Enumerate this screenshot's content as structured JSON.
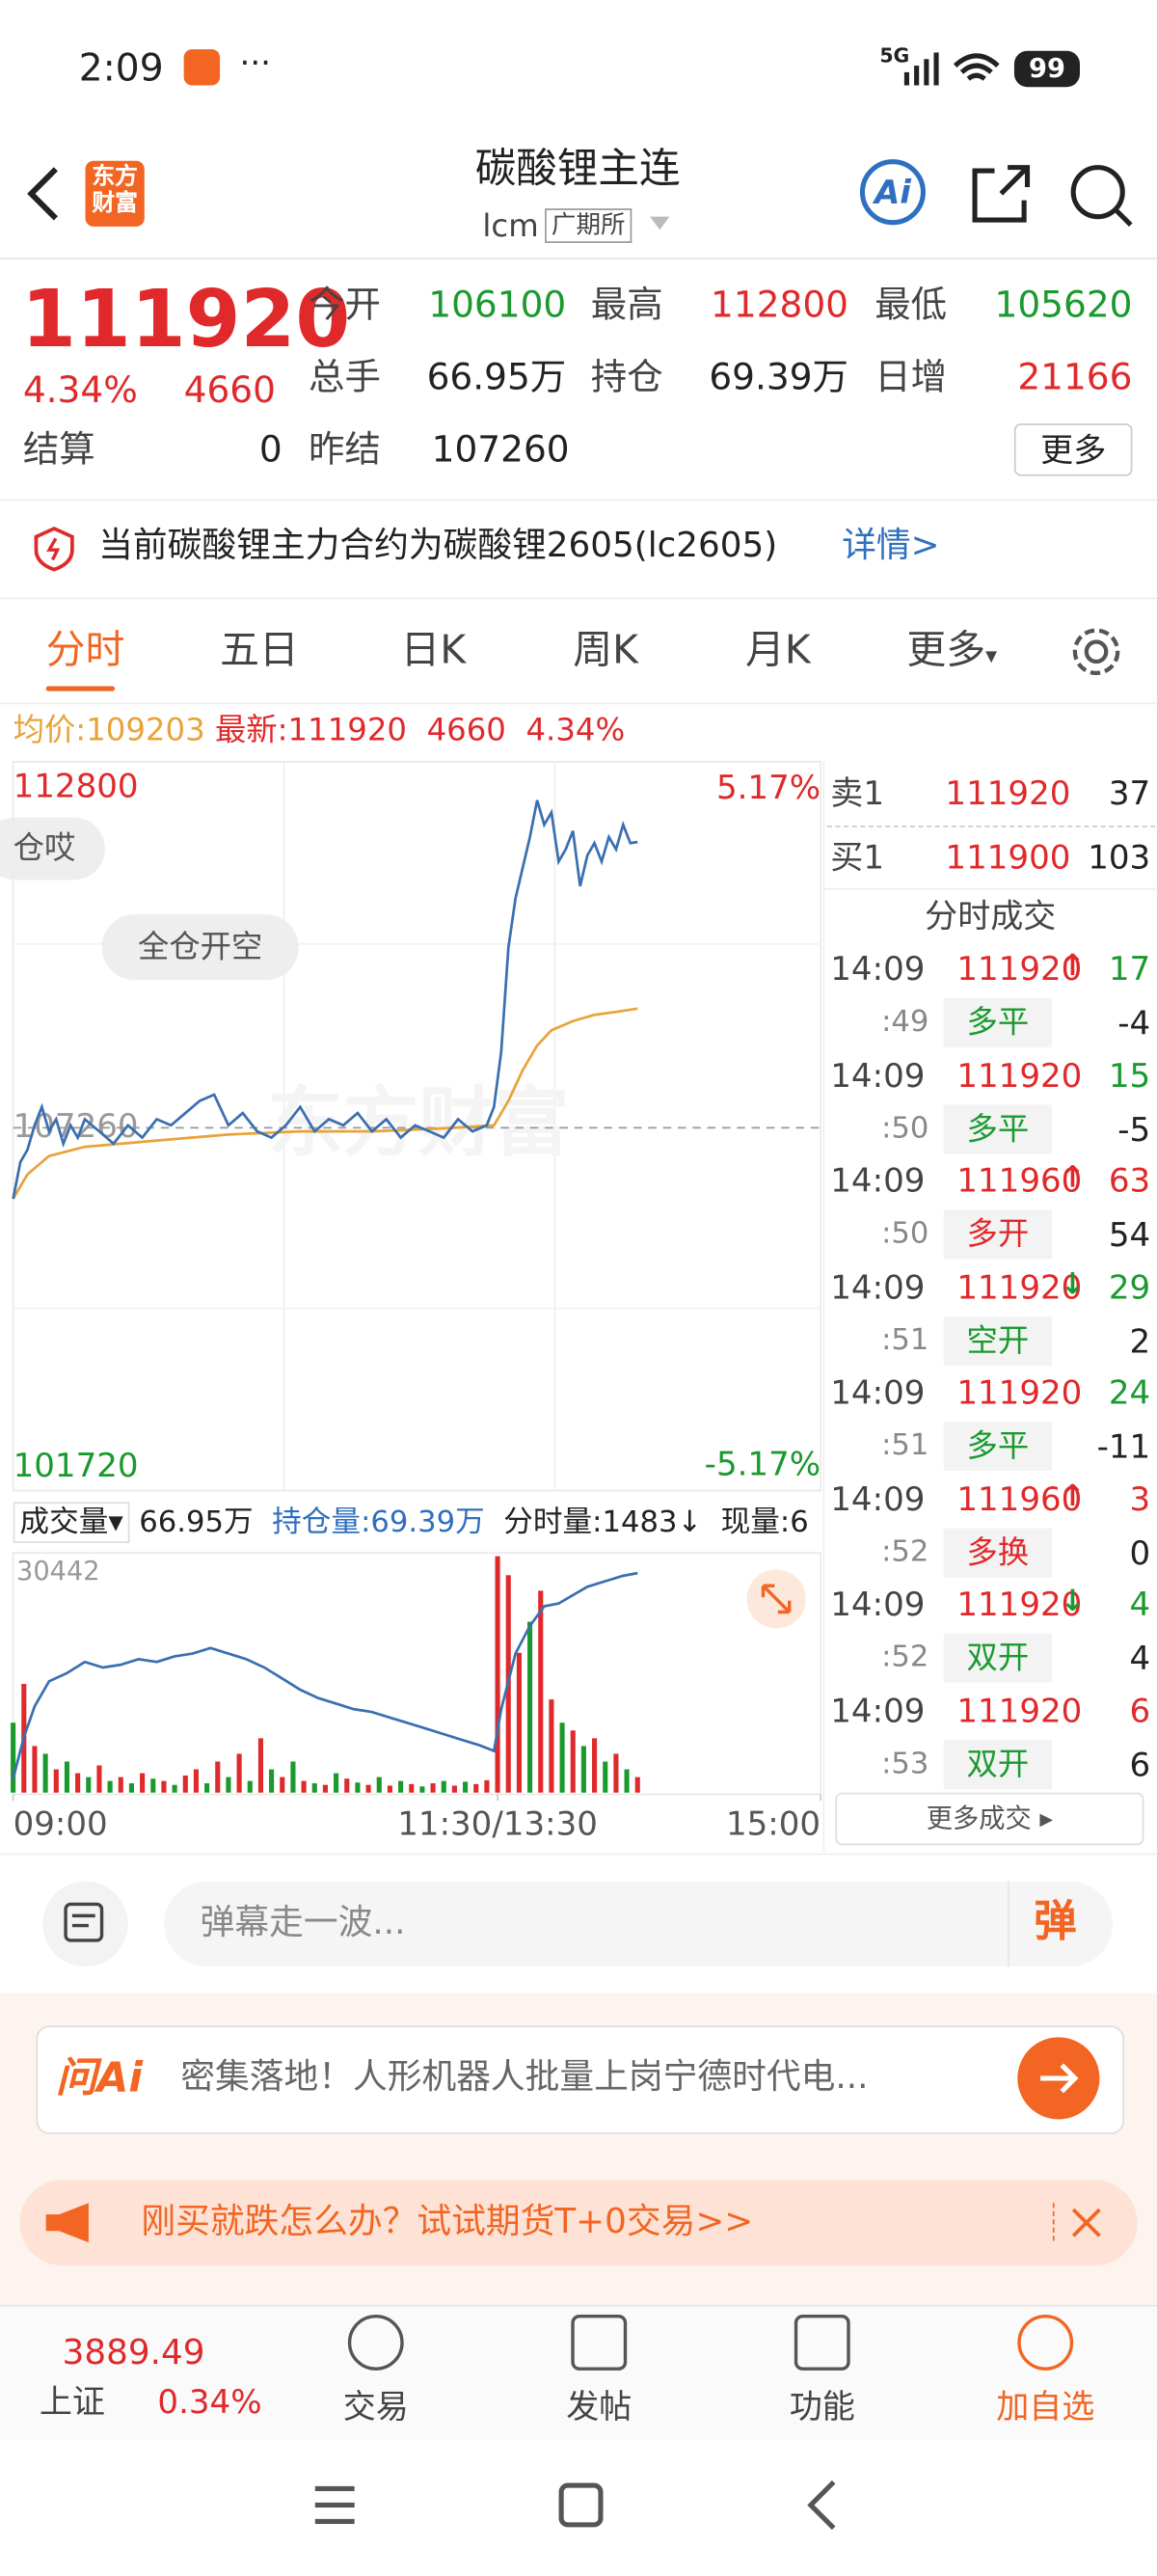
{
  "status": {
    "time": "2:09",
    "network": "5G",
    "battery": "99"
  },
  "header": {
    "logo": [
      "东方",
      "财富"
    ],
    "title": "碳酸锂主连",
    "code": "lcm",
    "exchange": "广期所",
    "ai": "Ai"
  },
  "quote": {
    "price": "111920",
    "pct": "4.34%",
    "change": "4660",
    "fields": [
      {
        "label": "今开",
        "value": "106100",
        "color": "#1a9a2e"
      },
      {
        "label": "最高",
        "value": "112800",
        "color": "#e0292b"
      },
      {
        "label": "最低",
        "value": "105620",
        "color": "#1a9a2e"
      },
      {
        "label": "总手",
        "value": "66.95万",
        "color": "#222222"
      },
      {
        "label": "持仓",
        "value": "69.39万",
        "color": "#222222"
      },
      {
        "label": "日增",
        "value": "21166",
        "color": "#e0292b"
      }
    ],
    "settle": {
      "label": "结算",
      "value": "0"
    },
    "prev_settle": {
      "label": "昨结",
      "value": "107260"
    },
    "more": "更多"
  },
  "notice": {
    "text": "当前碳酸锂主力合约为碳酸锂2605(lc2605)",
    "link": "详情>"
  },
  "tabs": [
    "分时",
    "五日",
    "日K",
    "周K",
    "月K",
    "更多"
  ],
  "info": {
    "avg_label": "均价:",
    "avg": "109203",
    "last_label": "最新:",
    "last": "111920",
    "change": "4660",
    "pct": "4.34%"
  },
  "danmaku": [
    "仓哎",
    "全仓开空"
  ],
  "watermark": "东方财富",
  "chart_data": [
    {
      "type": "line",
      "xlim": [
        0,
        225
      ],
      "ylim": [
        101720,
        112800
      ],
      "yticks": [
        112800,
        107260,
        101720
      ],
      "right_labels": [
        "5.17%",
        "-5.17%"
      ],
      "xticks": [
        {
          "value": 0,
          "label": "09:00"
        },
        {
          "value": 135,
          "label": "11:30/13:30"
        },
        {
          "value": 225,
          "label": "15:00"
        }
      ],
      "series": [
        {
          "color": "#3a6fb0",
          "x": [
            0,
            2,
            4,
            6,
            8,
            10,
            12,
            14,
            16,
            18,
            20,
            24,
            28,
            32,
            36,
            40,
            44,
            48,
            52,
            56,
            60,
            64,
            68,
            72,
            76,
            80,
            84,
            88,
            92,
            96,
            100,
            104,
            108,
            112,
            116,
            120,
            124,
            128,
            132,
            134,
            136,
            138,
            140,
            142,
            144,
            146,
            148,
            150,
            152,
            154,
            156,
            158,
            160,
            162,
            164,
            166,
            168,
            170,
            172,
            174
          ],
          "values": [
            106100,
            106700,
            106900,
            107300,
            107600,
            107200,
            107400,
            107000,
            107300,
            107100,
            107400,
            107200,
            107000,
            107300,
            107100,
            107400,
            107300,
            107500,
            107700,
            107800,
            107300,
            107500,
            107200,
            107100,
            107300,
            107600,
            107200,
            107400,
            107300,
            107500,
            107200,
            107400,
            107100,
            107300,
            107200,
            107100,
            107400,
            107200,
            107300,
            107600,
            108500,
            110200,
            111000,
            111500,
            112000,
            112600,
            112200,
            112400,
            111600,
            111800,
            112100,
            111200,
            111700,
            111900,
            111600,
            112000,
            111800,
            112200,
            111900,
            111920
          ]
        },
        {
          "color": "#e8a33a",
          "x": [
            0,
            4,
            10,
            20,
            40,
            60,
            80,
            100,
            120,
            134,
            138,
            142,
            146,
            150,
            156,
            162,
            168,
            174
          ],
          "values": [
            106100,
            106500,
            106800,
            106950,
            107050,
            107150,
            107200,
            107200,
            107250,
            107300,
            107700,
            108200,
            108600,
            108850,
            109000,
            109100,
            109150,
            109203
          ]
        }
      ]
    },
    {
      "type": "bar",
      "xlim": [
        0,
        225
      ],
      "ylim": [
        0,
        30442
      ],
      "yticks": [
        30442
      ],
      "y2lim": [
        61.5,
        70
      ],
      "legend": [
        "成交量",
        "66.95万",
        "持仓量:69.39万",
        "分时量:1483↓",
        "现量:6"
      ],
      "series": [
        {
          "type": "bar",
          "x": [
            0,
            3,
            6,
            9,
            12,
            15,
            18,
            21,
            24,
            27,
            30,
            33,
            36,
            39,
            42,
            45,
            48,
            51,
            54,
            57,
            60,
            63,
            66,
            69,
            72,
            75,
            78,
            81,
            84,
            87,
            90,
            93,
            96,
            99,
            102,
            105,
            108,
            111,
            114,
            117,
            120,
            123,
            126,
            129,
            132,
            135,
            138,
            141,
            144,
            147,
            150,
            153,
            156,
            159,
            162,
            165,
            168,
            171,
            174
          ],
          "values": [
            9000,
            14000,
            6000,
            5000,
            3000,
            4000,
            2500,
            2000,
            3500,
            1500,
            2000,
            1200,
            2500,
            1800,
            1500,
            1000,
            2200,
            3000,
            1200,
            4000,
            2000,
            5000,
            1500,
            7000,
            3000,
            2000,
            4000,
            1500,
            1200,
            1000,
            2500,
            1800,
            1300,
            1000,
            2000,
            900,
            1500,
            1100,
            800,
            1200,
            1500,
            900,
            1400,
            1100,
            1600,
            30442,
            28000,
            18000,
            22000,
            26000,
            12000,
            9000,
            8000,
            6000,
            7000,
            4000,
            5000,
            3000,
            2000
          ],
          "colors": [
            "#1a9a2e",
            "#e0292b",
            "#e0292b",
            "#1a9a2e",
            "#e0292b",
            "#1a9a2e",
            "#e0292b",
            "#1a9a2e",
            "#e0292b",
            "#1a9a2e",
            "#e0292b",
            "#1a9a2e",
            "#e0292b",
            "#1a9a2e",
            "#e0292b",
            "#1a9a2e",
            "#e0292b",
            "#e0292b",
            "#1a9a2e",
            "#e0292b",
            "#1a9a2e",
            "#e0292b",
            "#1a9a2e",
            "#e0292b",
            "#1a9a2e",
            "#e0292b",
            "#1a9a2e",
            "#e0292b",
            "#1a9a2e",
            "#e0292b",
            "#1a9a2e",
            "#e0292b",
            "#1a9a2e",
            "#e0292b",
            "#1a9a2e",
            "#e0292b",
            "#1a9a2e",
            "#e0292b",
            "#1a9a2e",
            "#e0292b",
            "#1a9a2e",
            "#e0292b",
            "#1a9a2e",
            "#e0292b",
            "#e0292b",
            "#e0292b",
            "#e0292b",
            "#e0292b",
            "#1a9a2e",
            "#e0292b",
            "#e0292b",
            "#1a9a2e",
            "#e0292b",
            "#1a9a2e",
            "#e0292b",
            "#1a9a2e",
            "#e0292b",
            "#1a9a2e",
            "#e0292b"
          ]
        },
        {
          "type": "line",
          "axis": "y2",
          "color": "#3a6fb0",
          "x": [
            0,
            3,
            6,
            10,
            15,
            20,
            25,
            30,
            35,
            40,
            45,
            50,
            55,
            60,
            65,
            70,
            75,
            80,
            85,
            90,
            95,
            100,
            105,
            110,
            115,
            120,
            125,
            130,
            134,
            136,
            140,
            144,
            148,
            152,
            156,
            160,
            165,
            170,
            174
          ],
          "values": [
            62.0,
            63.5,
            64.6,
            65.5,
            65.8,
            66.2,
            66.0,
            66.1,
            66.3,
            66.2,
            66.4,
            66.5,
            66.7,
            66.5,
            66.3,
            66.0,
            65.6,
            65.2,
            64.9,
            64.7,
            64.5,
            64.4,
            64.2,
            64.0,
            63.8,
            63.6,
            63.4,
            63.2,
            63.0,
            64.5,
            66.5,
            67.5,
            68.2,
            68.3,
            68.6,
            68.9,
            69.1,
            69.3,
            69.39
          ]
        }
      ]
    }
  ],
  "orderbook": [
    {
      "label": "卖1",
      "price": "111920",
      "volume": "37"
    },
    {
      "label": "买1",
      "price": "111900",
      "volume": "103"
    }
  ],
  "trades_title": "分时成交",
  "trades": [
    {
      "time": "14:09",
      "price": "111920",
      "arrow": "↑",
      "arrow_color": "#e0292b",
      "volume": "17",
      "volume_color": "#1a9a2e",
      "sub": ":49",
      "kind": "多平",
      "kind_color": "#1a9a2e",
      "change": "-4"
    },
    {
      "time": "14:09",
      "price": "111920",
      "volume": "15",
      "volume_color": "#1a9a2e",
      "sub": ":50",
      "kind": "多平",
      "kind_color": "#1a9a2e",
      "change": "-5"
    },
    {
      "time": "14:09",
      "price": "111960",
      "arrow": "↑",
      "arrow_color": "#e0292b",
      "volume": "63",
      "volume_color": "#e0292b",
      "sub": ":50",
      "kind": "多开",
      "kind_color": "#e0292b",
      "change": "54"
    },
    {
      "time": "14:09",
      "price": "111920",
      "arrow": "↓",
      "arrow_color": "#1a9a2e",
      "volume": "29",
      "volume_color": "#1a9a2e",
      "sub": ":51",
      "kind": "空开",
      "kind_color": "#1a9a2e",
      "change": "2"
    },
    {
      "time": "14:09",
      "price": "111920",
      "volume": "24",
      "volume_color": "#1a9a2e",
      "sub": ":51",
      "kind": "多平",
      "kind_color": "#1a9a2e",
      "change": "-11"
    },
    {
      "time": "14:09",
      "price": "111960",
      "arrow": "↑",
      "arrow_color": "#e0292b",
      "volume": "3",
      "volume_color": "#e0292b",
      "sub": ":52",
      "kind": "多换",
      "kind_color": "#e0292b",
      "change": "0"
    },
    {
      "time": "14:09",
      "price": "111920",
      "arrow": "↓",
      "arrow_color": "#1a9a2e",
      "volume": "4",
      "volume_color": "#1a9a2e",
      "sub": ":52",
      "kind": "双开",
      "kind_color": "#1a9a2e",
      "change": "4"
    },
    {
      "time": "14:09",
      "price": "111920",
      "volume": "6",
      "volume_color": "#e0292b",
      "sub": ":53",
      "kind": "双开",
      "kind_color": "#1a9a2e",
      "change": "6"
    }
  ],
  "trades_more": "更多成交 ▸",
  "comment": {
    "placeholder": "弹幕走一波...",
    "button": "弹"
  },
  "ad": {
    "brand": "问Ai",
    "text": "密集落地！人形机器人批量上岗宁德时代电..."
  },
  "banner": {
    "text": "刚买就跌怎么办？试试期货T+0交易>>"
  },
  "nav": {
    "index_value": "3889.49",
    "index_name": "上证",
    "index_pct": "0.34%",
    "items": [
      "交易",
      "发帖",
      "功能",
      "加自选"
    ]
  }
}
